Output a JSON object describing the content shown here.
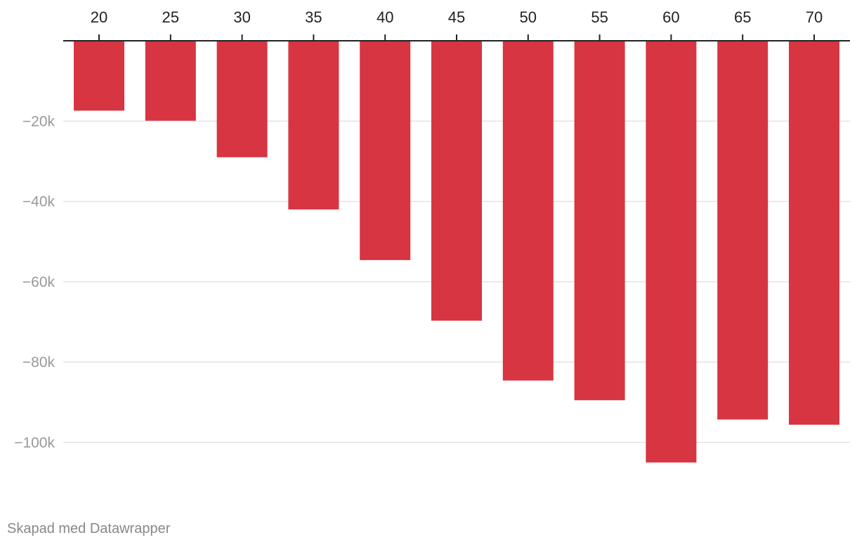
{
  "chart_data": {
    "type": "bar",
    "categories": [
      "20",
      "25",
      "30",
      "35",
      "40",
      "45",
      "50",
      "55",
      "60",
      "65",
      "70"
    ],
    "values": [
      -17400,
      -19900,
      -29000,
      -42000,
      -54600,
      -69700,
      -84600,
      -89500,
      -105000,
      -94300,
      -95600
    ],
    "ylim": [
      -105000,
      0
    ],
    "yticks": [
      -20000,
      -40000,
      -60000,
      -80000,
      -100000
    ],
    "ytick_labels": [
      "−20k",
      "−40k",
      "−60k",
      "−80k",
      "−100k"
    ],
    "x_axis_position": "top",
    "grid": true,
    "title": "",
    "xlabel": "",
    "ylabel": ""
  },
  "colors": {
    "bar": "#d73541",
    "grid": "#e3e3e3",
    "axis": "#222222"
  },
  "footer": {
    "credit": "Skapad med Datawrapper"
  }
}
